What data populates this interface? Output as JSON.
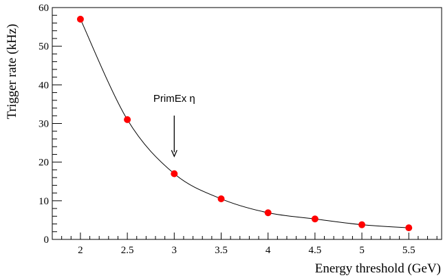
{
  "chart_data": {
    "type": "line",
    "xlabel": "Energy threshold  (GeV)",
    "ylabel": "Trigger rate  (kHz)",
    "xlim": [
      1.7,
      5.85
    ],
    "ylim": [
      0,
      60
    ],
    "x_ticks": [
      2,
      2.5,
      3,
      3.5,
      4,
      4.5,
      5,
      5.5
    ],
    "x_tick_labels": [
      "2",
      "2.5",
      "3",
      "3.5",
      "4",
      "4.5",
      "5",
      "5.5"
    ],
    "y_ticks": [
      0,
      10,
      20,
      30,
      40,
      50,
      60
    ],
    "y_tick_labels": [
      "0",
      "10",
      "20",
      "30",
      "40",
      "50",
      "60"
    ],
    "grid": false,
    "series": [
      {
        "x": [
          2,
          2.5,
          3,
          3.5,
          4,
          4.5,
          5,
          5.5
        ],
        "y": [
          57,
          31,
          17,
          10.5,
          6.9,
          5.3,
          3.8,
          3.0
        ],
        "marker_color": "#ff0000",
        "line_color": "#000000"
      }
    ],
    "annotations": [
      {
        "text": "PrimEx η",
        "arrow_x": 3,
        "arrow_tip_y": 21.5
      }
    ]
  }
}
